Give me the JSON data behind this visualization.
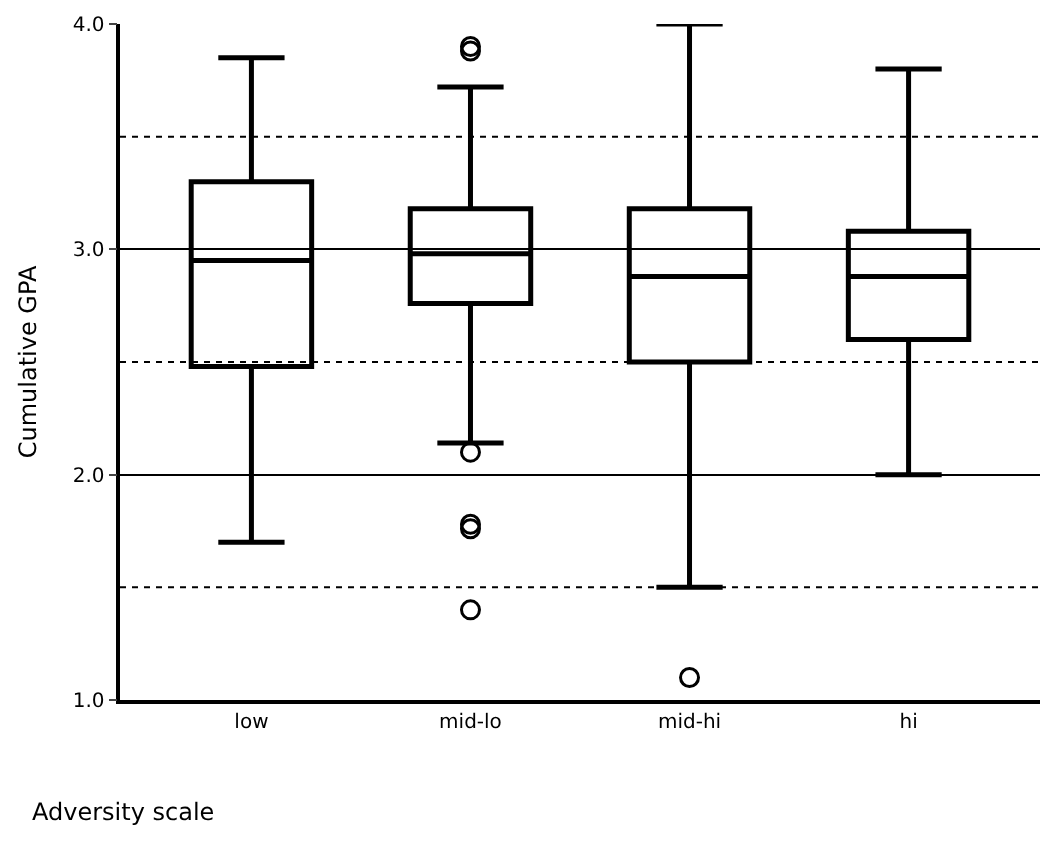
{
  "chart_data": {
    "type": "box",
    "xlabel": "Adversity scale",
    "ylabel": "Cumulative GPA",
    "categories": [
      "low",
      "mid-lo",
      "mid-hi",
      "hi"
    ],
    "boxes": [
      {
        "low": 1.7,
        "q1": 2.48,
        "median": 2.95,
        "q3": 3.3,
        "high": 3.85
      },
      {
        "low": 2.14,
        "q1": 2.76,
        "median": 2.98,
        "q3": 3.18,
        "high": 3.72,
        "outliers": [
          3.9,
          3.88,
          2.1,
          1.78,
          1.76,
          1.4
        ]
      },
      {
        "low": 1.5,
        "q1": 2.5,
        "median": 2.88,
        "q3": 3.18,
        "high": 4.0,
        "outliers": [
          1.1
        ]
      },
      {
        "low": 2.0,
        "q1": 2.6,
        "median": 2.88,
        "q3": 3.08,
        "high": 3.8
      }
    ],
    "color": "#000000",
    "ylim": [
      1.0,
      4.0
    ],
    "yticks": [
      {
        "value": 1.0,
        "label": "1.0"
      },
      {
        "value": 2.0,
        "label": "2.0"
      },
      {
        "value": 3.0,
        "label": "3.0"
      },
      {
        "value": 4.0,
        "label": "4.0"
      }
    ],
    "grid": "y",
    "ref_lines": [
      {
        "axis": "y",
        "value": 1.5,
        "line_style": "dashed"
      },
      {
        "axis": "y",
        "value": 2.5,
        "line_style": "dashed"
      },
      {
        "axis": "y",
        "value": 3.5,
        "line_style": "dashed"
      }
    ]
  }
}
